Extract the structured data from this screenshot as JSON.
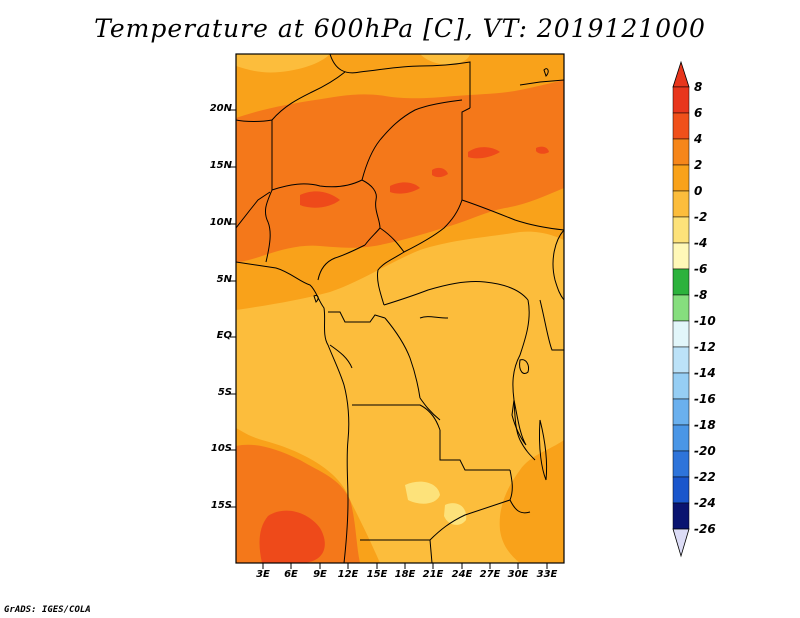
{
  "title": "Temperature at 600hPa [C], VT: 2019121000",
  "credit": "GrADS: IGES/COLA",
  "map": {
    "lat_labels": [
      "20N",
      "15N",
      "10N",
      "5N",
      "EQ",
      "5S",
      "10S",
      "15S"
    ],
    "lon_labels": [
      "3E",
      "6E",
      "9E",
      "12E",
      "15E",
      "18E",
      "21E",
      "24E",
      "27E",
      "30E",
      "33E"
    ]
  },
  "colorbar": {
    "labels": [
      "8",
      "6",
      "4",
      "2",
      "0",
      "-2",
      "-4",
      "-6",
      "-8",
      "-10",
      "-12",
      "-14",
      "-16",
      "-18",
      "-20",
      "-22",
      "-24",
      "-26"
    ],
    "colors": [
      "#e8361c",
      "#f0501a",
      "#f6861a",
      "#f9a21a",
      "#fcbd3c",
      "#fde27a",
      "#fff8b8",
      "#2cb23c",
      "#54cc5a",
      "#86de7e",
      "#bdf0b4",
      "#e2f6fa",
      "#bce2f8",
      "#96cef4",
      "#6ab0ee",
      "#4a96e6",
      "#2e74da",
      "#1a56cc",
      "#0e3ca0",
      "#0a1470",
      "#dcdcf6"
    ]
  },
  "colors": {
    "t_gt6": "#ee4a1a",
    "t_4_6": "#f4781a",
    "t_2_4": "#f9a21a",
    "t_0_2": "#fcbd3c",
    "t_m2_0": "#fde27a",
    "border": "#000000"
  }
}
